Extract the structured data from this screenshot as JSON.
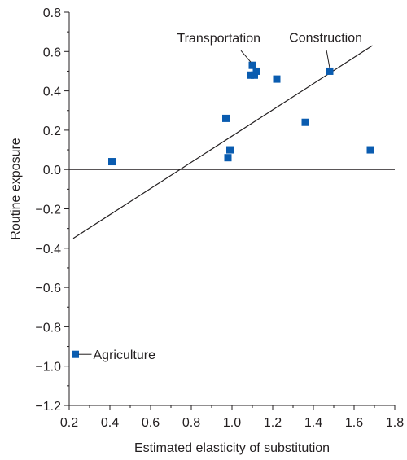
{
  "chart_data": {
    "type": "scatter",
    "title": "",
    "xlabel": "Estimated elasticity of substitution",
    "ylabel": "Routine exposure",
    "xlim": [
      0.2,
      1.8
    ],
    "ylim": [
      -1.2,
      0.8
    ],
    "x_ticks": [
      0.2,
      0.4,
      0.6,
      0.8,
      1.0,
      1.2,
      1.4,
      1.6,
      1.8
    ],
    "x_tick_labels": [
      "0.2",
      "0.4",
      "0.6",
      "0.8",
      "1.0",
      "1.2",
      "1.4",
      "1.6",
      "1.8"
    ],
    "y_ticks": [
      -1.2,
      -1.0,
      -0.8,
      -0.6,
      -0.4,
      -0.2,
      0.0,
      0.2,
      0.4,
      0.6,
      0.8
    ],
    "y_tick_labels": [
      "−1.2",
      "−1.0",
      "−0.8",
      "−0.6",
      "−0.4",
      "−0.2",
      "0.0",
      "0.2",
      "0.4",
      "0.6",
      "0.8"
    ],
    "grid": false,
    "marker_color": "#0a5cb0",
    "points": [
      {
        "x": 0.23,
        "y": -0.94,
        "label": "Agriculture"
      },
      {
        "x": 0.41,
        "y": 0.04,
        "label": ""
      },
      {
        "x": 0.97,
        "y": 0.26,
        "label": ""
      },
      {
        "x": 0.98,
        "y": 0.06,
        "label": ""
      },
      {
        "x": 0.99,
        "y": 0.1,
        "label": ""
      },
      {
        "x": 1.09,
        "y": 0.48,
        "label": ""
      },
      {
        "x": 1.1,
        "y": 0.53,
        "label": "Transportation"
      },
      {
        "x": 1.11,
        "y": 0.48,
        "label": ""
      },
      {
        "x": 1.12,
        "y": 0.5,
        "label": ""
      },
      {
        "x": 1.22,
        "y": 0.46,
        "label": ""
      },
      {
        "x": 1.36,
        "y": 0.24,
        "label": ""
      },
      {
        "x": 1.48,
        "y": 0.5,
        "label": "Construction"
      },
      {
        "x": 1.68,
        "y": 0.1,
        "label": ""
      }
    ],
    "fit_line": {
      "x": [
        0.22,
        1.69
      ],
      "y": [
        -0.35,
        0.63
      ]
    },
    "reference_line_y": 0.0
  }
}
